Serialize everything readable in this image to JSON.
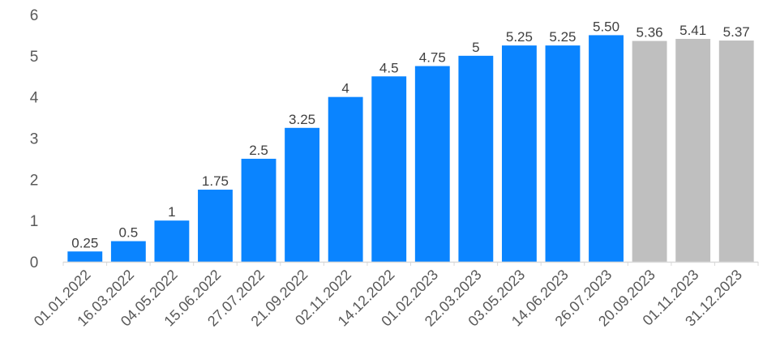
{
  "chart_data": {
    "type": "bar",
    "categories": [
      "01.01.2022",
      "16.03.2022",
      "04.05.2022",
      "15.06.2022",
      "27.07.2022",
      "21.09.2022",
      "02.11.2022",
      "14.12.2022",
      "01.02.2023",
      "22.03.2023",
      "03.05.2023",
      "14.06.2023",
      "26.07.2023",
      "20.09.2023",
      "01.11.2023",
      "31.12.2023"
    ],
    "values": [
      0.25,
      0.5,
      1,
      1.75,
      2.5,
      3.25,
      4,
      4.5,
      4.75,
      5,
      5.25,
      5.25,
      5.5,
      5.36,
      5.41,
      5.37
    ],
    "data_labels": [
      "0.25",
      "0.5",
      "1",
      "1.75",
      "2.5",
      "3.25",
      "4",
      "4.5",
      "4.75",
      "5",
      "5.25",
      "5.25",
      "5.50",
      "5.36",
      "5.41",
      "5.37"
    ],
    "bar_colors": [
      "#0a84ff",
      "#0a84ff",
      "#0a84ff",
      "#0a84ff",
      "#0a84ff",
      "#0a84ff",
      "#0a84ff",
      "#0a84ff",
      "#0a84ff",
      "#0a84ff",
      "#0a84ff",
      "#0a84ff",
      "#0a84ff",
      "#bfbfbf",
      "#bfbfbf",
      "#bfbfbf"
    ],
    "y_ticks": [
      0,
      1,
      2,
      3,
      4,
      5,
      6
    ],
    "ylim": [
      0,
      6
    ],
    "title": "",
    "xlabel": "",
    "ylabel": "",
    "grid": false,
    "legend": "none"
  }
}
